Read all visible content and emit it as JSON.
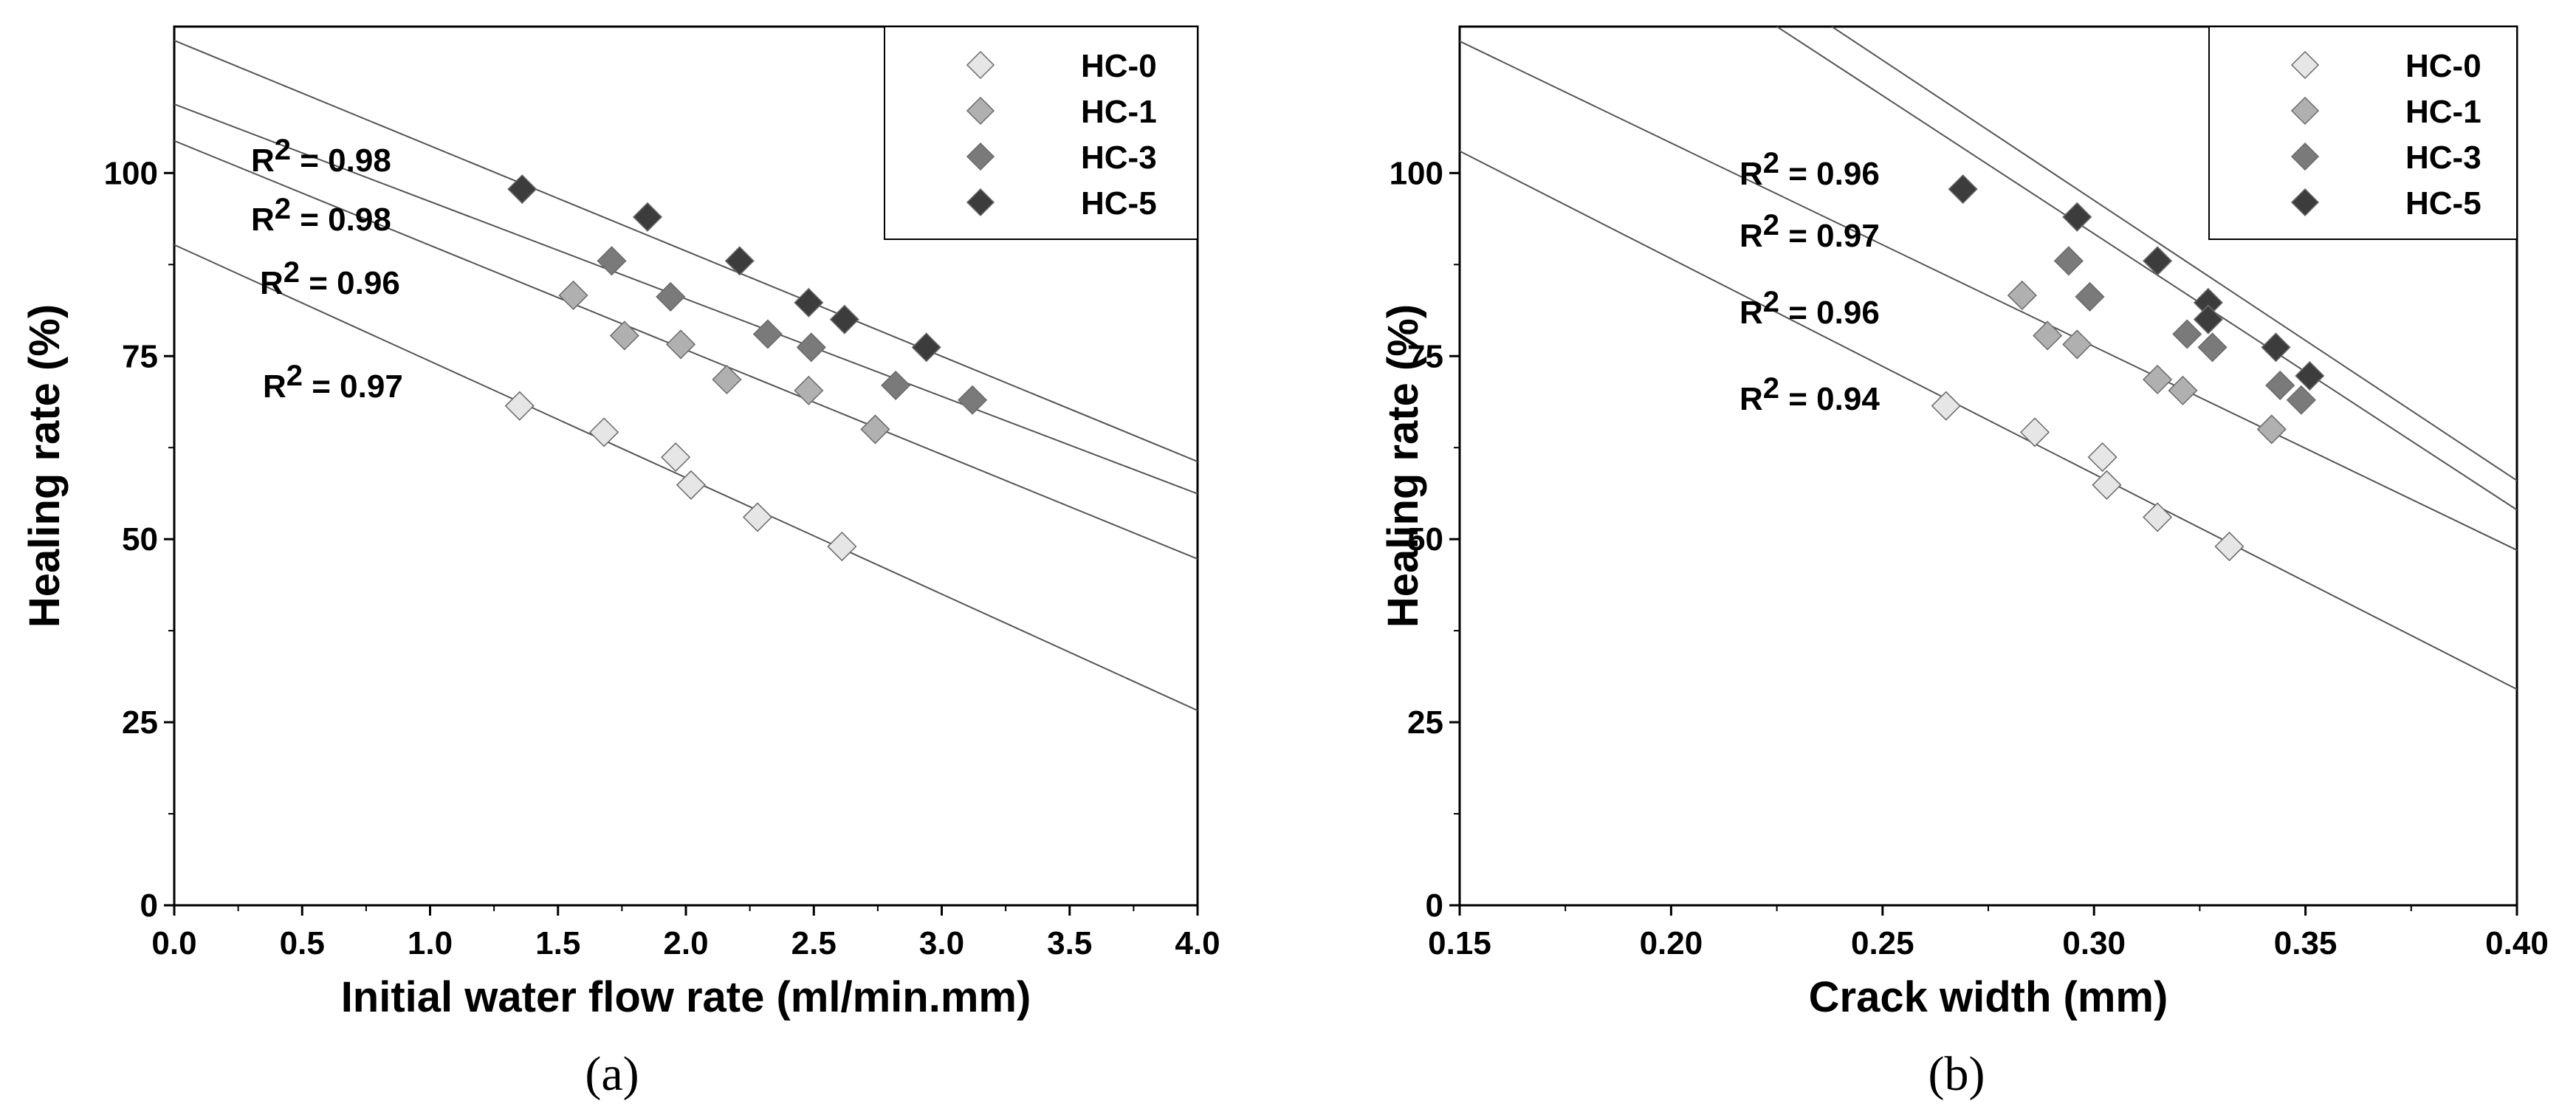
{
  "figure": {
    "colors": {
      "HC-0": "#e6e6e6",
      "HC-1": "#b0b0b0",
      "HC-3": "#7a7a7a",
      "HC-5": "#3c3c3c",
      "axis": "#000000",
      "fit_line": "#555555"
    }
  },
  "chart_data": [
    {
      "type": "scatter",
      "panel_label": "(a)",
      "xlabel": "Initial water flow rate (ml/min.mm)",
      "ylabel": "Healing rate (%)",
      "xlim": [
        0.0,
        4.0
      ],
      "ylim": [
        0,
        120
      ],
      "xticks": [
        0.0,
        0.5,
        1.0,
        1.5,
        2.0,
        2.5,
        3.0,
        3.5,
        4.0
      ],
      "xtick_labels": [
        "0.0",
        "0.5",
        "1.0",
        "1.5",
        "2.0",
        "2.5",
        "3.0",
        "3.5",
        "4.0"
      ],
      "yticks": [
        0,
        25,
        50,
        75,
        100
      ],
      "ytick_labels": [
        "0",
        "25",
        "50",
        "75",
        "100"
      ],
      "legend_position": "top-right",
      "series": [
        {
          "name": "HC-0",
          "x": [
            1.35,
            1.68,
            1.96,
            2.02,
            2.28,
            2.61
          ],
          "y": [
            68.2,
            64.6,
            61.2,
            57.4,
            53.0,
            49.0
          ],
          "fit": [
            [
              0.0,
              90.2
            ],
            [
              4.0,
              26.6
            ]
          ]
        },
        {
          "name": "HC-1",
          "x": [
            1.56,
            1.76,
            1.98,
            2.16,
            2.48,
            2.74
          ],
          "y": [
            83.3,
            77.8,
            76.6,
            71.8,
            70.3,
            65.0
          ],
          "fit": [
            [
              0.0,
              104.4
            ],
            [
              4.0,
              47.3
            ]
          ]
        },
        {
          "name": "HC-3",
          "x": [
            1.71,
            1.94,
            2.32,
            2.49,
            2.82,
            3.12
          ],
          "y": [
            88.0,
            83.1,
            78.0,
            76.2,
            71.0,
            69.0
          ],
          "fit": [
            [
              0.0,
              109.4
            ],
            [
              4.0,
              56.2
            ]
          ]
        },
        {
          "name": "HC-5",
          "x": [
            1.36,
            1.85,
            2.21,
            2.48,
            2.62,
            2.94
          ],
          "y": [
            97.8,
            94.0,
            88.0,
            82.3,
            80.0,
            76.2
          ],
          "fit": [
            [
              0.0,
              118.1
            ],
            [
              4.0,
              60.6
            ]
          ]
        }
      ],
      "annotations": [
        {
          "series": "HC-5",
          "r2_prefix": "R",
          "r2_sup": "2",
          "r2_value": " = 0.98"
        },
        {
          "series": "HC-3",
          "r2_prefix": "R",
          "r2_sup": "2",
          "r2_value": " = 0.98"
        },
        {
          "series": "HC-1",
          "r2_prefix": "R",
          "r2_sup": "2",
          "r2_value": " = 0.96"
        },
        {
          "series": "HC-0",
          "r2_prefix": "R",
          "r2_sup": "2",
          "r2_value": " = 0.97"
        }
      ]
    },
    {
      "type": "scatter",
      "panel_label": "(b)",
      "xlabel": "Crack width (mm)",
      "ylabel": "Healing rate (%)",
      "xlim": [
        0.15,
        0.4
      ],
      "ylim": [
        0,
        120
      ],
      "xticks": [
        0.15,
        0.2,
        0.25,
        0.3,
        0.35,
        0.4
      ],
      "xtick_labels": [
        "0.15",
        "0.20",
        "0.25",
        "0.30",
        "0.35",
        "0.40"
      ],
      "yticks": [
        0,
        25,
        50,
        75,
        100
      ],
      "ytick_labels": [
        "0",
        "25",
        "50",
        "75",
        "100"
      ],
      "legend_position": "top-right",
      "series": [
        {
          "name": "HC-0",
          "x": [
            0.265,
            0.286,
            0.302,
            0.303,
            0.315,
            0.332
          ],
          "y": [
            68.2,
            64.6,
            61.2,
            57.4,
            53.0,
            49.0
          ],
          "fit": [
            [
              0.15,
              103.0
            ],
            [
              0.4,
              29.5
            ]
          ]
        },
        {
          "name": "HC-1",
          "x": [
            0.283,
            0.289,
            0.296,
            0.315,
            0.321,
            0.342
          ],
          "y": [
            83.3,
            77.8,
            76.6,
            71.8,
            70.3,
            65.0
          ],
          "fit": [
            [
              0.15,
              118.0
            ],
            [
              0.4,
              48.5
            ]
          ]
        },
        {
          "name": "HC-3",
          "x": [
            0.294,
            0.299,
            0.322,
            0.328,
            0.344,
            0.349
          ],
          "y": [
            88.0,
            83.1,
            78.0,
            76.2,
            71.0,
            69.0
          ],
          "fit": [
            [
              0.225,
              120.0
            ],
            [
              0.4,
              54.0
            ]
          ]
        },
        {
          "name": "HC-5",
          "x": [
            0.269,
            0.296,
            0.315,
            0.327,
            0.327,
            0.343,
            0.351
          ],
          "y": [
            97.8,
            94.0,
            88.0,
            82.3,
            80.0,
            76.2,
            72.3
          ],
          "fit": [
            [
              0.238,
              120.0
            ],
            [
              0.4,
              58.0
            ]
          ]
        }
      ],
      "annotations": [
        {
          "series": "HC-5",
          "r2_prefix": "R",
          "r2_sup": "2",
          "r2_value": " = 0.96"
        },
        {
          "series": "HC-3",
          "r2_prefix": "R",
          "r2_sup": "2",
          "r2_value": " = 0.97"
        },
        {
          "series": "HC-1",
          "r2_prefix": "R",
          "r2_sup": "2",
          "r2_value": " = 0.96"
        },
        {
          "series": "HC-0",
          "r2_prefix": "R",
          "r2_sup": "2",
          "r2_value": " = 0.94"
        }
      ]
    }
  ]
}
